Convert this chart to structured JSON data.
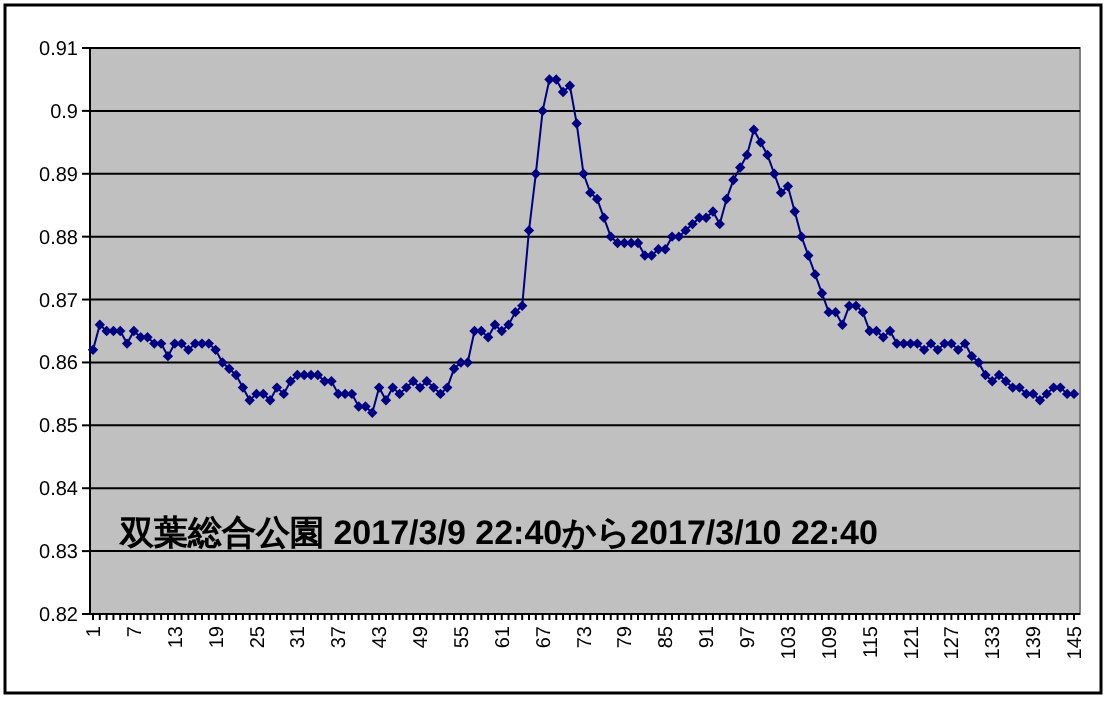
{
  "chart_data": {
    "type": "line",
    "annotations": [
      "双葉総合公園 2017/3/9 22:40から2017/3/10 22:40"
    ],
    "categories": [
      "1",
      null,
      null,
      null,
      null,
      null,
      "7",
      null,
      null,
      null,
      null,
      null,
      "13",
      null,
      null,
      null,
      null,
      null,
      "19",
      null,
      null,
      null,
      null,
      null,
      "25",
      null,
      null,
      null,
      null,
      null,
      "31",
      null,
      null,
      null,
      null,
      null,
      "37",
      null,
      null,
      null,
      null,
      null,
      "43",
      null,
      null,
      null,
      null,
      null,
      "49",
      null,
      null,
      null,
      null,
      null,
      "55",
      null,
      null,
      null,
      null,
      null,
      "61",
      null,
      null,
      null,
      null,
      null,
      "67",
      null,
      null,
      null,
      null,
      null,
      "73",
      null,
      null,
      null,
      null,
      null,
      "79",
      null,
      null,
      null,
      null,
      null,
      "85",
      null,
      null,
      null,
      null,
      null,
      "91",
      null,
      null,
      null,
      null,
      null,
      "97",
      null,
      null,
      null,
      null,
      null,
      "103",
      null,
      null,
      null,
      null,
      null,
      "109",
      null,
      null,
      null,
      null,
      null,
      "115",
      null,
      null,
      null,
      null,
      null,
      "121",
      null,
      null,
      null,
      null,
      null,
      "127",
      null,
      null,
      null,
      null,
      null,
      "133",
      null,
      null,
      null,
      null,
      null,
      "139",
      null,
      null,
      null,
      null,
      null,
      "145"
    ],
    "series": [
      {
        "color": "#000080",
        "values": [
          0.862,
          0.866,
          0.865,
          0.865,
          0.865,
          0.863,
          0.865,
          0.864,
          0.864,
          0.863,
          0.863,
          0.861,
          0.863,
          0.863,
          0.862,
          0.863,
          0.863,
          0.863,
          0.862,
          0.86,
          0.859,
          0.858,
          0.856,
          0.854,
          0.855,
          0.855,
          0.854,
          0.856,
          0.855,
          0.857,
          0.858,
          0.858,
          0.858,
          0.858,
          0.857,
          0.857,
          0.855,
          0.855,
          0.855,
          0.853,
          0.853,
          0.852,
          0.856,
          0.854,
          0.856,
          0.855,
          0.856,
          0.857,
          0.856,
          0.857,
          0.856,
          0.855,
          0.856,
          0.859,
          0.86,
          0.86,
          0.865,
          0.865,
          0.864,
          0.866,
          0.865,
          0.866,
          0.868,
          0.869,
          0.881,
          0.89,
          0.9,
          0.905,
          0.905,
          0.903,
          0.904,
          0.898,
          0.89,
          0.887,
          0.886,
          0.883,
          0.88,
          0.879,
          0.879,
          0.879,
          0.879,
          0.877,
          0.877,
          0.878,
          0.878,
          0.88,
          0.88,
          0.881,
          0.882,
          0.883,
          0.883,
          0.884,
          0.882,
          0.886,
          0.889,
          0.891,
          0.893,
          0.897,
          0.895,
          0.893,
          0.89,
          0.887,
          0.888,
          0.884,
          0.88,
          0.877,
          0.874,
          0.871,
          0.868,
          0.868,
          0.866,
          0.869,
          0.869,
          0.868,
          0.865,
          0.865,
          0.864,
          0.865,
          0.863,
          0.863,
          0.863,
          0.863,
          0.862,
          0.863,
          0.862,
          0.863,
          0.863,
          0.862,
          0.863,
          0.861,
          0.86,
          0.858,
          0.857,
          0.858,
          0.857,
          0.856,
          0.856,
          0.855,
          0.855,
          0.854,
          0.855,
          0.856,
          0.856,
          0.855,
          0.855
        ]
      }
    ],
    "ylim": [
      0.82,
      0.91
    ],
    "yticks": [
      0.82,
      0.83,
      0.84,
      0.85,
      0.86,
      0.87,
      0.88,
      0.89,
      0.9,
      0.91
    ],
    "grid": "y",
    "marker": "diamond",
    "line_style": "solid"
  }
}
